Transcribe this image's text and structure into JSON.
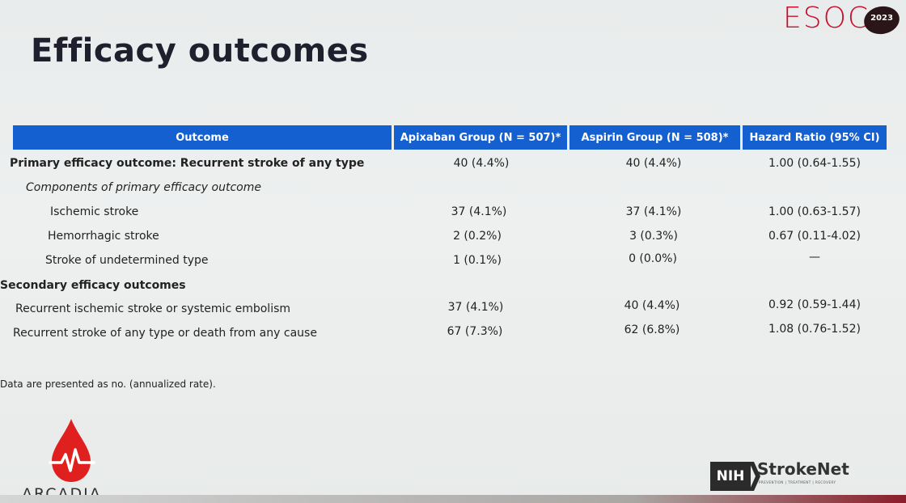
{
  "slide": {
    "title": "Efficacy outcomes",
    "conference_logo": {
      "text": "ESOC",
      "year": "2023",
      "color": "#c8102e"
    },
    "accent_color": "#1560d0"
  },
  "table": {
    "headers": [
      "Outcome",
      "Apixaban Group (N = 507)*",
      "Aspirin Group (N = 508)*",
      "Hazard Ratio (95% CI)"
    ],
    "rows": [
      {
        "label": "Primary efficacy outcome: Recurrent stroke of any type",
        "apixaban": "40 (4.4%)",
        "aspirin": "40 (4.4%)",
        "hr": "1.00 (0.64-1.55)"
      },
      {
        "label": "Components of primary efficacy outcome",
        "apixaban": "",
        "aspirin": "",
        "hr": ""
      },
      {
        "label": "Ischemic stroke",
        "apixaban": "37 (4.1%)",
        "aspirin": "37 (4.1%)",
        "hr": "1.00 (0.63-1.57)"
      },
      {
        "label": "Hemorrhagic stroke",
        "apixaban": "2 (0.2%)",
        "aspirin": "3 (0.3%)",
        "hr": "0.67 (0.11-4.02)"
      },
      {
        "label": "Stroke of undetermined type",
        "apixaban": "1 (0.1%)",
        "aspirin": "0 (0.0%)",
        "hr": "—"
      },
      {
        "label": "Secondary efficacy outcomes",
        "apixaban": "",
        "aspirin": "",
        "hr": ""
      },
      {
        "label": "Recurrent ischemic stroke or systemic embolism",
        "apixaban": "37 (4.1%)",
        "aspirin": "40 (4.4%)",
        "hr": "0.92 (0.59-1.44)"
      },
      {
        "label": "Recurrent stroke of any type or death from any cause",
        "apixaban": "67 (7.3%)",
        "aspirin": "62 (6.8%)",
        "hr": "1.08 (0.76-1.52)"
      }
    ]
  },
  "footnote": "Data are presented as no. (annualized rate).",
  "footer": {
    "left_logo": {
      "text": "ARCADIA",
      "icon": "blood-drop-heartbeat-icon",
      "color": "#e0201f"
    },
    "right_logo": {
      "nih": "NIH",
      "name": "StrokeNet",
      "tagline": "PREVENTION | TREATMENT | RECOVERY"
    }
  }
}
